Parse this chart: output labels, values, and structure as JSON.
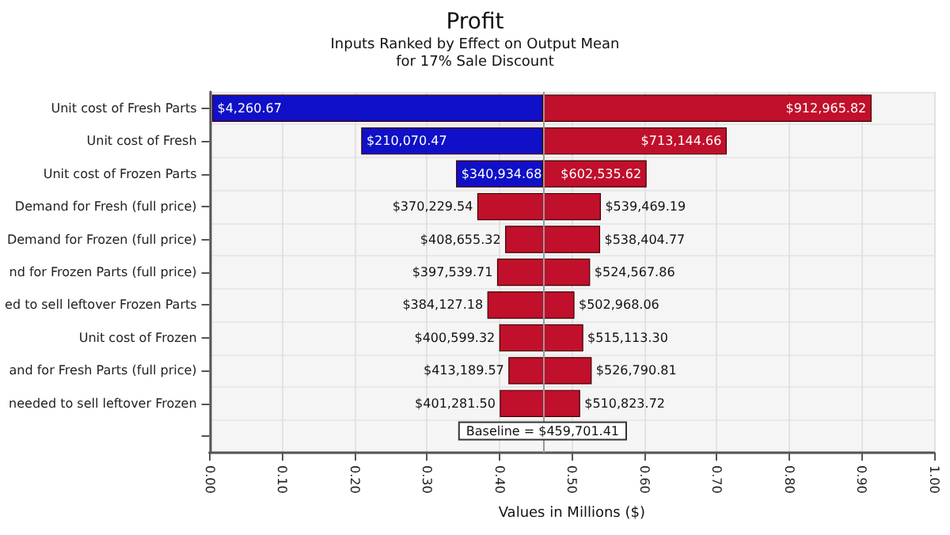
{
  "chart_data": {
    "type": "bar",
    "orientation": "horizontal",
    "title": "Profit",
    "subtitle": "Inputs Ranked by Effect on Output Mean\nfor 17% Sale Discount",
    "xlabel": "Values in Millions ($)",
    "categories": [
      "Unit cost of Fresh Parts",
      "Unit cost of Fresh",
      "Unit cost of Frozen Parts",
      "Demand for Fresh (full price)",
      "Demand for Frozen (full price)",
      "nd for Frozen Parts (full price)",
      "ed to sell leftover Frozen Parts",
      "Unit cost of Frozen",
      "and for Fresh Parts (full price)",
      " needed to sell leftover Frozen"
    ],
    "series": [
      {
        "color": "#1010c8",
        "base": [
          0.00426067,
          0.21007047,
          0.34093468,
          null,
          null,
          null,
          null,
          null,
          null,
          null
        ],
        "values": [
          0.45544074,
          0.24963094,
          0.11876673,
          null,
          null,
          null,
          null,
          null,
          null,
          null
        ]
      },
      {
        "color": "#c0102c",
        "base": [
          0.45970141,
          0.45970141,
          0.45970141,
          0.37022954,
          0.40865532,
          0.39753971,
          0.38412718,
          0.40059932,
          0.41318957,
          0.4012815
        ],
        "values": [
          0.45326441,
          0.25344325,
          0.14283421,
          0.16923965,
          0.12974945,
          0.12702815,
          0.11884088,
          0.11451398,
          0.11360124,
          0.10954222
        ]
      }
    ],
    "xlim": [
      0,
      1
    ],
    "xticks": [
      {
        "value": 0,
        "label": "0.00"
      },
      {
        "value": 0.1,
        "label": "0.10"
      },
      {
        "value": 0.2,
        "label": "0.20"
      },
      {
        "value": 0.3,
        "label": "0.30"
      },
      {
        "value": 0.4,
        "label": "0.40"
      },
      {
        "value": 0.5,
        "label": "0.50"
      },
      {
        "value": 0.6,
        "label": "0.60"
      },
      {
        "value": 0.7,
        "label": "0.70"
      },
      {
        "value": 0.8,
        "label": "0.80"
      },
      {
        "value": 0.9,
        "label": "0.90"
      },
      {
        "value": 1,
        "label": "1.00"
      }
    ],
    "ref_lines": [
      {
        "axis": "x",
        "value": 0.45970141,
        "label": "Baseline = $459,701.41",
        "color": "#999999"
      }
    ],
    "annotations": [
      {
        "text": "$4,260.67",
        "x": 0.00426067,
        "y": "Unit cost of Fresh Parts"
      },
      {
        "text": "$912,965.82",
        "x": 0.91296582,
        "y": "Unit cost of Fresh Parts"
      },
      {
        "text": "$210,070.47",
        "x": 0.21007047,
        "y": "Unit cost of Fresh"
      },
      {
        "text": "$713,144.66",
        "x": 0.71314466,
        "y": "Unit cost of Fresh"
      },
      {
        "text": "$340,934.68",
        "x": 0.34093468,
        "y": "Unit cost of Frozen Parts"
      },
      {
        "text": "$602,535.62",
        "x": 0.60253562,
        "y": "Unit cost of Frozen Parts"
      },
      {
        "text": "$370,229.54",
        "x": 0.37022954,
        "y": "Demand for Fresh (full price)"
      },
      {
        "text": "$539,469.19",
        "x": 0.53946919,
        "y": "Demand for Fresh (full price)"
      },
      {
        "text": "$408,655.32",
        "x": 0.40865532,
        "y": "Demand for Frozen (full price)"
      },
      {
        "text": "$538,404.77",
        "x": 0.53840477,
        "y": "Demand for Frozen (full price)"
      },
      {
        "text": "$397,539.71",
        "x": 0.39753971,
        "y": "nd for Frozen Parts (full price)"
      },
      {
        "text": "$524,567.86",
        "x": 0.52456786,
        "y": "nd for Frozen Parts (full price)"
      },
      {
        "text": "$384,127.18",
        "x": 0.38412718,
        "y": "ed to sell leftover Frozen Parts"
      },
      {
        "text": "$502,968.06",
        "x": 0.50296806,
        "y": "ed to sell leftover Frozen Parts"
      },
      {
        "text": "$400,599.32",
        "x": 0.40059932,
        "y": "Unit cost of Frozen"
      },
      {
        "text": "$515,113.30",
        "x": 0.5151133,
        "y": "Unit cost of Frozen"
      },
      {
        "text": "$413,189.57",
        "x": 0.41318957,
        "y": "and for Fresh Parts (full price)"
      },
      {
        "text": "$526,790.81",
        "x": 0.52679081,
        "y": "and for Fresh Parts (full price)"
      },
      {
        "text": "$401,281.50",
        "x": 0.4012815,
        "y": " needed to sell leftover Frozen"
      },
      {
        "text": "$510,823.72",
        "x": 0.51082372,
        "y": " needed to sell leftover Frozen"
      }
    ],
    "grid": true
  }
}
